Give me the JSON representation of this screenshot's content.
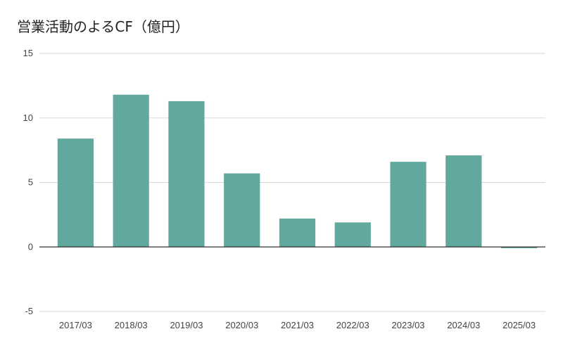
{
  "chart_data": {
    "type": "bar",
    "title": "営業活動のよるCF（億円）",
    "categories": [
      "2017/03",
      "2018/03",
      "2019/03",
      "2020/03",
      "2021/03",
      "2022/03",
      "2023/03",
      "2024/03",
      "2025/03"
    ],
    "values": [
      8.4,
      11.8,
      11.3,
      5.7,
      2.2,
      1.9,
      6.6,
      7.1,
      -0.1
    ],
    "ylim": [
      -5,
      15
    ],
    "yticks": [
      15,
      10,
      5,
      0,
      -5
    ],
    "grid": true,
    "legend": "none",
    "colors": {
      "bar": "#61a89f",
      "grid": "#d9d9d9",
      "baseline": "#333333"
    }
  }
}
